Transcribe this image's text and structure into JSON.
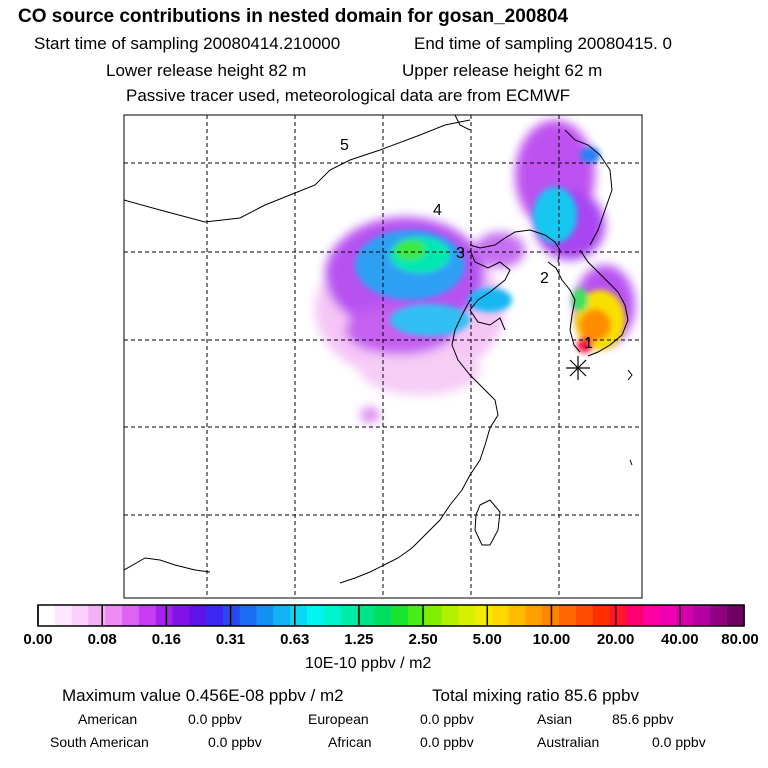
{
  "header": {
    "title": "CO  source contributions in nested domain for gosan_200804",
    "start_label": "Start time of sampling 20080414.210000",
    "end_label": "End time of sampling 20080415.     0",
    "lower_label": "Lower release height   82 m",
    "upper_label": "Upper release height   62 m",
    "tracer_label": "Passive tracer used, meteorological data are from ECMWF"
  },
  "chart_data": {
    "type": "heatmap",
    "title": "CO  source contributions in nested domain for gosan_200804",
    "colorbar": {
      "tick_labels": [
        "0.00",
        "0.08",
        "0.16",
        "0.31",
        "0.63",
        "1.25",
        "2.50",
        "5.00",
        "10.00",
        "20.00",
        "40.00",
        "80.00"
      ],
      "units": "10E-10 ppbv / m2",
      "colors": [
        "#ffffff",
        "#ffe6ff",
        "#fcd0fc",
        "#f5b0f5",
        "#ec8cf4",
        "#dc64f4",
        "#c83cf4",
        "#a820f0",
        "#8014e8",
        "#5e14e8",
        "#3c28f0",
        "#2848f4",
        "#1c6cf4",
        "#1490f4",
        "#10b4f4",
        "#08d8f4",
        "#00f4f0",
        "#00f4cc",
        "#00ecaa",
        "#00e488",
        "#00e060",
        "#18e430",
        "#48ec18",
        "#80f000",
        "#b0f000",
        "#d8f000",
        "#f4ec00",
        "#ffd800",
        "#ffbc00",
        "#ffa000",
        "#ff8400",
        "#ff6800",
        "#ff4c00",
        "#ff3000",
        "#ff1830",
        "#ff0070",
        "#ff00a0",
        "#f000b4",
        "#d400b0",
        "#b400a0",
        "#900080",
        "#700060"
      ]
    },
    "grid": true,
    "markers": [
      {
        "label": "1"
      },
      {
        "label": "2"
      },
      {
        "label": "3"
      },
      {
        "label": "4"
      },
      {
        "label": "5"
      }
    ],
    "receptor_symbol": "asterisk"
  },
  "footer": {
    "max_label": "Maximum value  0.456E-08 ppbv / m2",
    "total_label": "Total mixing ratio       85.6 ppbv",
    "regions": [
      {
        "name": "American",
        "value": "0.0 ppbv"
      },
      {
        "name": "European",
        "value": "0.0 ppbv"
      },
      {
        "name": "Asian",
        "value": "85.6 ppbv"
      },
      {
        "name": "South American",
        "value": "0.0 ppbv"
      },
      {
        "name": "African",
        "value": "0.0 ppbv"
      },
      {
        "name": "Australian",
        "value": "0.0 ppbv"
      }
    ]
  }
}
